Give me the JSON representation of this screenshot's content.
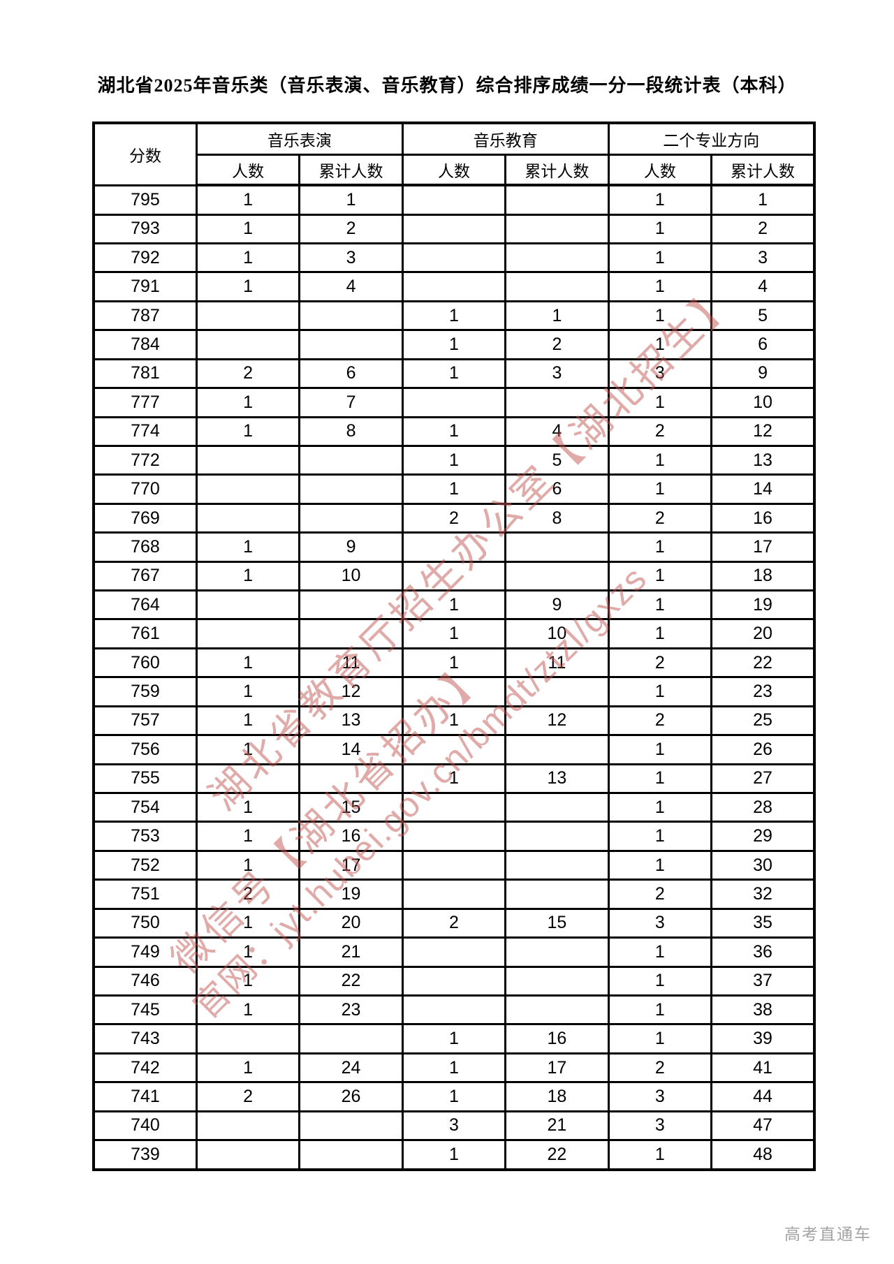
{
  "document": {
    "title": "湖北省2025年音乐类（音乐表演、音乐教育）综合排序成绩一分一段统计表（本科）",
    "footer_brand": "高考直通车"
  },
  "colors": {
    "watermark": "#c05650",
    "footer_text": "#a3a3a3",
    "table_border": "#000000",
    "background": "#ffffff"
  },
  "watermark": {
    "lines": [
      "湖北省教育厅招生办公室【湖北招生】",
      "微信号【湖北省招办】",
      "官网：jyt.hubei.gov.cn/bmdt/ztzl/gxzs"
    ]
  },
  "table": {
    "header": {
      "score_label": "分数",
      "groups": [
        "音乐表演",
        "音乐教育",
        "二个专业方向"
      ],
      "count_label": "人数",
      "cumulative_label": "累计人数"
    },
    "columns": [
      "分数",
      "音乐表演-人数",
      "音乐表演-累计人数",
      "音乐教育-人数",
      "音乐教育-累计人数",
      "二个专业方向-人数",
      "二个专业方向-累计人数"
    ],
    "rows": [
      [
        "795",
        "1",
        "1",
        "",
        "",
        "1",
        "1"
      ],
      [
        "793",
        "1",
        "2",
        "",
        "",
        "1",
        "2"
      ],
      [
        "792",
        "1",
        "3",
        "",
        "",
        "1",
        "3"
      ],
      [
        "791",
        "1",
        "4",
        "",
        "",
        "1",
        "4"
      ],
      [
        "787",
        "",
        "",
        "1",
        "1",
        "1",
        "5"
      ],
      [
        "784",
        "",
        "",
        "1",
        "2",
        "1",
        "6"
      ],
      [
        "781",
        "2",
        "6",
        "1",
        "3",
        "3",
        "9"
      ],
      [
        "777",
        "1",
        "7",
        "",
        "",
        "1",
        "10"
      ],
      [
        "774",
        "1",
        "8",
        "1",
        "4",
        "2",
        "12"
      ],
      [
        "772",
        "",
        "",
        "1",
        "5",
        "1",
        "13"
      ],
      [
        "770",
        "",
        "",
        "1",
        "6",
        "1",
        "14"
      ],
      [
        "769",
        "",
        "",
        "2",
        "8",
        "2",
        "16"
      ],
      [
        "768",
        "1",
        "9",
        "",
        "",
        "1",
        "17"
      ],
      [
        "767",
        "1",
        "10",
        "",
        "",
        "1",
        "18"
      ],
      [
        "764",
        "",
        "",
        "1",
        "9",
        "1",
        "19"
      ],
      [
        "761",
        "",
        "",
        "1",
        "10",
        "1",
        "20"
      ],
      [
        "760",
        "1",
        "11",
        "1",
        "11",
        "2",
        "22"
      ],
      [
        "759",
        "1",
        "12",
        "",
        "",
        "1",
        "23"
      ],
      [
        "757",
        "1",
        "13",
        "1",
        "12",
        "2",
        "25"
      ],
      [
        "756",
        "1",
        "14",
        "",
        "",
        "1",
        "26"
      ],
      [
        "755",
        "",
        "",
        "1",
        "13",
        "1",
        "27"
      ],
      [
        "754",
        "1",
        "15",
        "",
        "",
        "1",
        "28"
      ],
      [
        "753",
        "1",
        "16",
        "",
        "",
        "1",
        "29"
      ],
      [
        "752",
        "1",
        "17",
        "",
        "",
        "1",
        "30"
      ],
      [
        "751",
        "2",
        "19",
        "",
        "",
        "2",
        "32"
      ],
      [
        "750",
        "1",
        "20",
        "2",
        "15",
        "3",
        "35"
      ],
      [
        "749",
        "1",
        "21",
        "",
        "",
        "1",
        "36"
      ],
      [
        "746",
        "1",
        "22",
        "",
        "",
        "1",
        "37"
      ],
      [
        "745",
        "1",
        "23",
        "",
        "",
        "1",
        "38"
      ],
      [
        "743",
        "",
        "",
        "1",
        "16",
        "1",
        "39"
      ],
      [
        "742",
        "1",
        "24",
        "1",
        "17",
        "2",
        "41"
      ],
      [
        "741",
        "2",
        "26",
        "1",
        "18",
        "3",
        "44"
      ],
      [
        "740",
        "",
        "",
        "3",
        "21",
        "3",
        "47"
      ],
      [
        "739",
        "",
        "",
        "1",
        "22",
        "1",
        "48"
      ]
    ]
  }
}
